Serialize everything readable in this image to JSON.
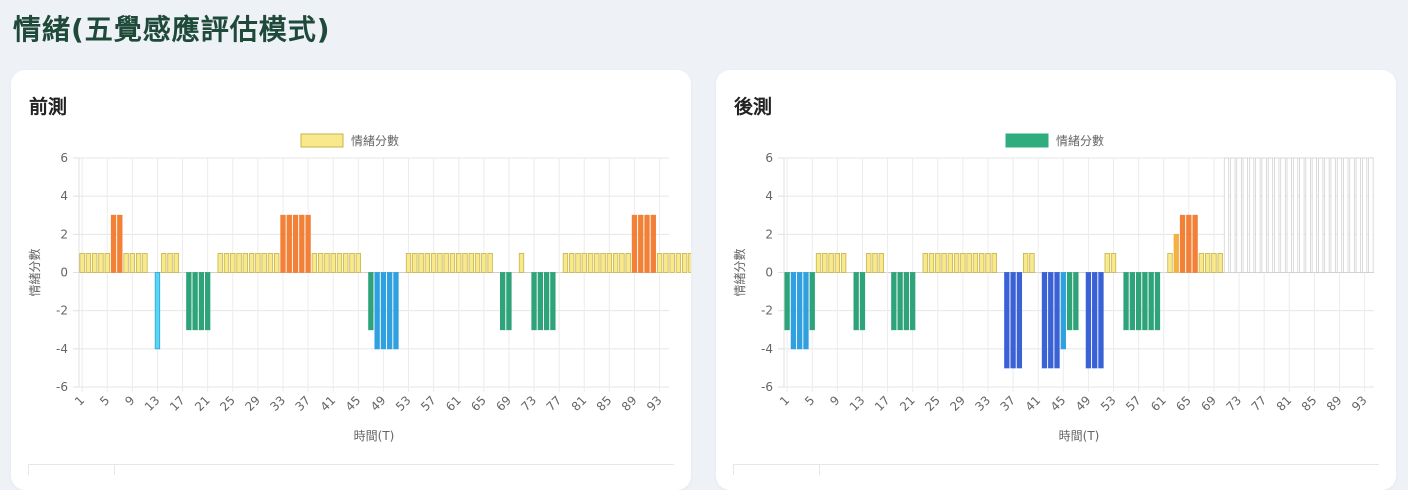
{
  "page": {
    "title": "情緒(五覺感應評估模式)"
  },
  "colors": {
    "positive1": "#f8ea8c",
    "positive1_border": "#c9b34a",
    "positive3": "#f28036",
    "positive2": "#f5b042",
    "negative3": "#2fa37a",
    "negative4_light": "#5ad6ef",
    "negative4": "#2fa0e0",
    "negative5": "#3a62d6",
    "empty_border": "#cccccc",
    "legend_left": "#f8ea8c",
    "legend_right": "#2fad7e"
  },
  "chart_data": [
    {
      "panel_title": "前測",
      "type": "bar",
      "legend": "情緒分數",
      "xlabel": "時間(T)",
      "ylabel": "情緒分數",
      "ylim": [
        -6,
        6
      ],
      "yticks": [
        6,
        4,
        2,
        0,
        -2,
        -4,
        -6
      ],
      "x_tick_labels": [
        "1",
        "5",
        "9",
        "13",
        "17",
        "21",
        "25",
        "29",
        "33",
        "37",
        "41",
        "45",
        "49",
        "53",
        "57",
        "61",
        "65",
        "69",
        "73",
        "77",
        "81",
        "85",
        "89",
        "93"
      ],
      "values": [
        1,
        1,
        1,
        1,
        1,
        3,
        3,
        1,
        1,
        1,
        1,
        0,
        -4,
        1,
        1,
        1,
        0,
        -3,
        -3,
        -3,
        -3,
        0,
        1,
        1,
        1,
        1,
        1,
        1,
        1,
        1,
        1,
        1,
        3,
        3,
        3,
        3,
        3,
        1,
        1,
        1,
        1,
        1,
        1,
        1,
        1,
        0,
        -3,
        -4,
        -4,
        -4,
        -4,
        0,
        1,
        1,
        1,
        1,
        1,
        1,
        1,
        1,
        1,
        1,
        1,
        1,
        1,
        1,
        0,
        -3,
        -3,
        0,
        1,
        0,
        -3,
        -3,
        -3,
        -3,
        0,
        1,
        1,
        1,
        1,
        1,
        1,
        1,
        1,
        1,
        1,
        1,
        3,
        3,
        3,
        3,
        1,
        1,
        1,
        1,
        1,
        1,
        1,
        1,
        1,
        1,
        1,
        1,
        1,
        1
      ]
    },
    {
      "panel_title": "後測",
      "type": "bar",
      "legend": "情緒分數",
      "xlabel": "時間(T)",
      "ylabel": "情緒分數",
      "ylim": [
        -6,
        6
      ],
      "yticks": [
        6,
        4,
        2,
        0,
        -2,
        -4,
        -6
      ],
      "x_tick_labels": [
        "1",
        "5",
        "9",
        "13",
        "17",
        "21",
        "25",
        "29",
        "33",
        "37",
        "41",
        "45",
        "49",
        "53",
        "57",
        "61",
        "65",
        "69",
        "73",
        "77",
        "81",
        "85",
        "89",
        "93"
      ],
      "values": [
        -3,
        -4,
        -4,
        -4,
        -3,
        1,
        1,
        1,
        1,
        1,
        0,
        -3,
        -3,
        1,
        1,
        1,
        0,
        -3,
        -3,
        -3,
        -3,
        0,
        1,
        1,
        1,
        1,
        1,
        1,
        1,
        1,
        1,
        1,
        1,
        1,
        0,
        -5,
        -5,
        -5,
        1,
        1,
        0,
        -5,
        -5,
        -5,
        -4,
        -3,
        -3,
        0,
        -5,
        -5,
        -5,
        1,
        1,
        0,
        -3,
        -3,
        -3,
        -3,
        -3,
        -3,
        0,
        1,
        2,
        3,
        3,
        3,
        1,
        1,
        1,
        1
      ],
      "empty_from_index": 70
    }
  ]
}
